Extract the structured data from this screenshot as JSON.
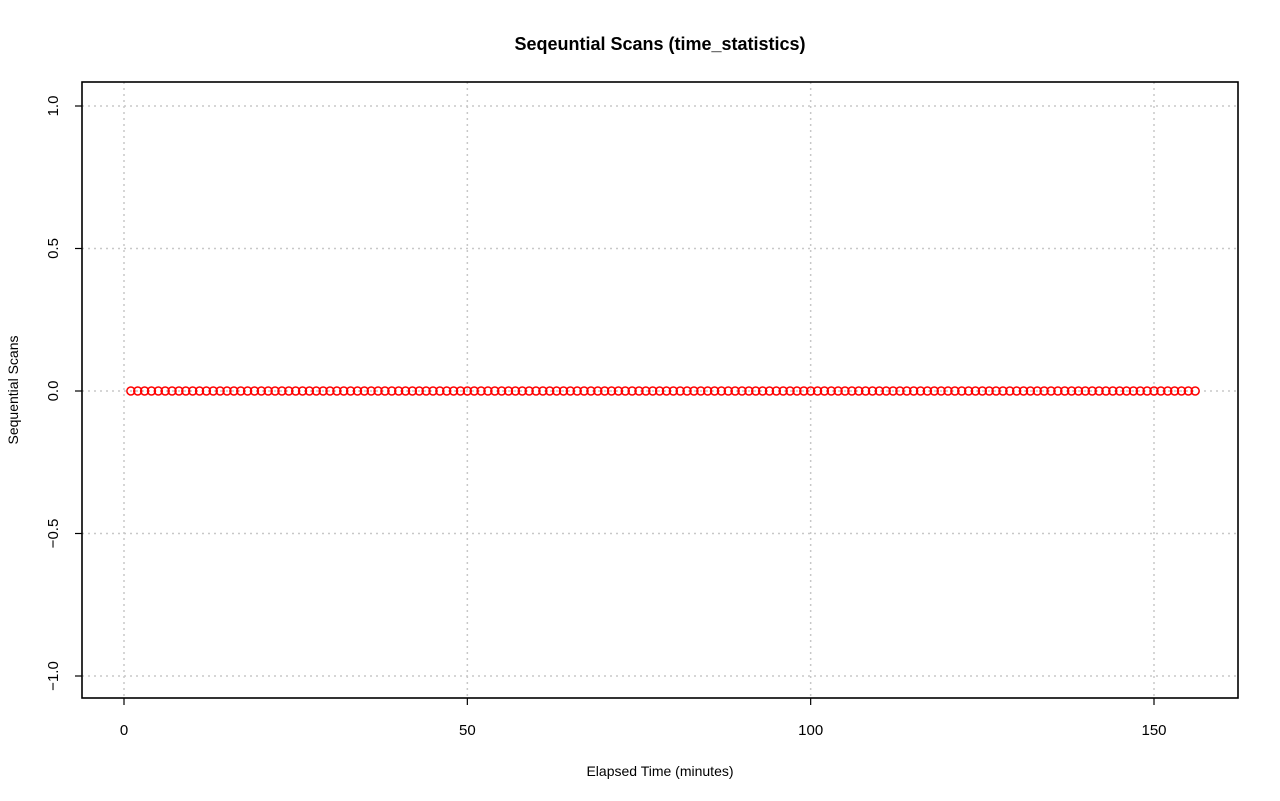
{
  "chart_data": {
    "type": "scatter",
    "title": "Seqeuntial Scans (time_statistics)",
    "xlabel": "Elapsed Time (minutes)",
    "ylabel": "Sequential Scans",
    "xlim": [
      0,
      160
    ],
    "ylim": [
      -1.0,
      1.0
    ],
    "x_ticks": [
      0,
      50,
      100,
      150
    ],
    "x_tick_labels": [
      "0",
      "50",
      "100",
      "150"
    ],
    "y_ticks": [
      -1.0,
      -0.5,
      0.0,
      0.5,
      1.0
    ],
    "y_tick_labels": [
      "−1.0",
      "−0.5",
      "0.0",
      "0.5",
      "1.0"
    ],
    "grid": true,
    "grid_style": "dotted",
    "marker": "open-circle",
    "series": [
      {
        "color": "#ff0000",
        "x": [
          1,
          2,
          3,
          4,
          5,
          6,
          7,
          8,
          9,
          10,
          11,
          12,
          13,
          14,
          15,
          16,
          17,
          18,
          19,
          20,
          21,
          22,
          23,
          24,
          25,
          26,
          27,
          28,
          29,
          30,
          31,
          32,
          33,
          34,
          35,
          36,
          37,
          38,
          39,
          40,
          41,
          42,
          43,
          44,
          45,
          46,
          47,
          48,
          49,
          50,
          51,
          52,
          53,
          54,
          55,
          56,
          57,
          58,
          59,
          60,
          61,
          62,
          63,
          64,
          65,
          66,
          67,
          68,
          69,
          70,
          71,
          72,
          73,
          74,
          75,
          76,
          77,
          78,
          79,
          80,
          81,
          82,
          83,
          84,
          85,
          86,
          87,
          88,
          89,
          90,
          91,
          92,
          93,
          94,
          95,
          96,
          97,
          98,
          99,
          100,
          101,
          102,
          103,
          104,
          105,
          106,
          107,
          108,
          109,
          110,
          111,
          112,
          113,
          114,
          115,
          116,
          117,
          118,
          119,
          120,
          121,
          122,
          123,
          124,
          125,
          126,
          127,
          128,
          129,
          130,
          131,
          132,
          133,
          134,
          135,
          136,
          137,
          138,
          139,
          140,
          141,
          142,
          143,
          144,
          145,
          146,
          147,
          148,
          149,
          150,
          151,
          152,
          153,
          154,
          155,
          156
        ],
        "y": [
          0,
          0,
          0,
          0,
          0,
          0,
          0,
          0,
          0,
          0,
          0,
          0,
          0,
          0,
          0,
          0,
          0,
          0,
          0,
          0,
          0,
          0,
          0,
          0,
          0,
          0,
          0,
          0,
          0,
          0,
          0,
          0,
          0,
          0,
          0,
          0,
          0,
          0,
          0,
          0,
          0,
          0,
          0,
          0,
          0,
          0,
          0,
          0,
          0,
          0,
          0,
          0,
          0,
          0,
          0,
          0,
          0,
          0,
          0,
          0,
          0,
          0,
          0,
          0,
          0,
          0,
          0,
          0,
          0,
          0,
          0,
          0,
          0,
          0,
          0,
          0,
          0,
          0,
          0,
          0,
          0,
          0,
          0,
          0,
          0,
          0,
          0,
          0,
          0,
          0,
          0,
          0,
          0,
          0,
          0,
          0,
          0,
          0,
          0,
          0,
          0,
          0,
          0,
          0,
          0,
          0,
          0,
          0,
          0,
          0,
          0,
          0,
          0,
          0,
          0,
          0,
          0,
          0,
          0,
          0,
          0,
          0,
          0,
          0,
          0,
          0,
          0,
          0,
          0,
          0,
          0,
          0,
          0,
          0,
          0,
          0,
          0,
          0,
          0,
          0,
          0,
          0,
          0,
          0,
          0,
          0,
          0,
          0,
          0,
          0,
          0,
          0,
          0,
          0,
          0,
          0
        ]
      }
    ]
  }
}
